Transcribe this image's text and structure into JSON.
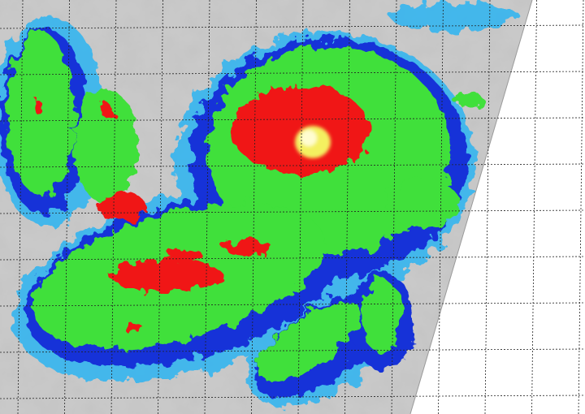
{
  "palette": {
    "background_clear": "#ffffff",
    "cloud_low": "#8a8a8a",
    "cloud_mid": "#d8d8d8",
    "cold_light": "#33b5f0",
    "cold_blue": "#1530d8",
    "cold_green": "#3fe03a",
    "very_cold_red": "#f01818",
    "coldest_yellow": "#f4f060",
    "grid_line": "#222222"
  }
}
